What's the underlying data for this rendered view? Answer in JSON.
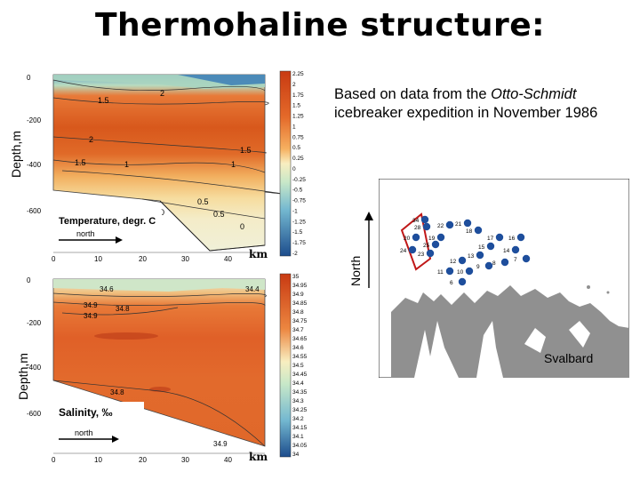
{
  "title": "Thermohaline structure:",
  "caption": {
    "part1": "Based on data from the ",
    "ship": "Otto-Schmidt",
    "part2": " icebreaker expedition in November 1986"
  },
  "labels": {
    "depth_top": "Depth,m",
    "depth_bottom": "Depth,m",
    "north": "North",
    "svalbard": "Svalbard"
  },
  "temperature_panel": {
    "title": "Temperature, degr. C",
    "direction": "north",
    "x_unit": "km",
    "x_ticks": [
      "0",
      "10",
      "20",
      "30",
      "40"
    ],
    "y_ticks": [
      "0",
      "-200",
      "-400",
      "-600"
    ],
    "colorbar": [
      "2.25",
      "2",
      "1.75",
      "1.5",
      "1.25",
      "1",
      "0.75",
      "0.5",
      "0.25",
      "0",
      "-0.25",
      "-0.5",
      "-0.75",
      "-1",
      "-1.25",
      "-1.5",
      "-1.75",
      "-2"
    ],
    "contour_labels": [
      "1.5",
      "2",
      "2",
      "1.5",
      "1.5",
      "1",
      "1",
      "0.5",
      "0.5",
      "0",
      "0"
    ]
  },
  "salinity_panel": {
    "title": "Salinity, ‰",
    "direction": "north",
    "x_unit": "km",
    "x_ticks": [
      "0",
      "10",
      "20",
      "30",
      "40"
    ],
    "y_ticks": [
      "0",
      "-200",
      "-400",
      "-600"
    ],
    "colorbar": [
      "35",
      "34.95",
      "34.9",
      "34.85",
      "34.8",
      "34.75",
      "34.7",
      "34.65",
      "34.6",
      "34.55",
      "34.5",
      "34.45",
      "34.4",
      "34.35",
      "34.3",
      "34.25",
      "34.2",
      "34.15",
      "34.1",
      "34.05",
      "34"
    ],
    "contour_labels": [
      "34.6",
      "34.4",
      "34.9",
      "34.8",
      "34.9",
      "34.8",
      "34.9"
    ]
  },
  "stations": [
    "34",
    "28",
    "22",
    "21",
    "20",
    "19",
    "18",
    "25",
    "24",
    "23",
    "17",
    "16",
    "15",
    "14",
    "13",
    "12",
    "11",
    "10",
    "9",
    "8",
    "7",
    "6"
  ],
  "colors": {
    "warm": "#d8581c",
    "mid": "#f0a040",
    "pale": "#f4e8b8",
    "cold": "#2a6cae",
    "land": "#909090",
    "station": "#1e4e9c",
    "track": "#c01818"
  }
}
